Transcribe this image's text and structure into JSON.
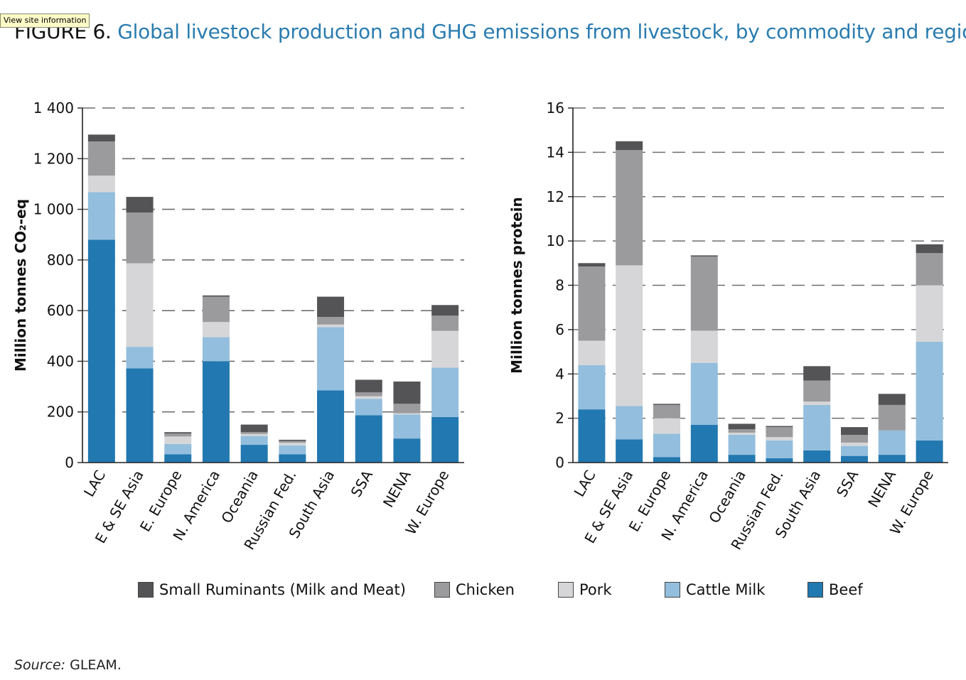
{
  "tooltip": "View site information",
  "figure": {
    "label": "FIGURE 6.",
    "title": "Global livestock production and GHG emissions from livestock, by commodity and regions"
  },
  "colors": {
    "small_ruminants": "#545457",
    "chicken": "#9b9b9d",
    "pork": "#d6d6d8",
    "cattle_milk": "#93bedd",
    "beef": "#2278b0",
    "title_blue": "#2a7cb0"
  },
  "legend": [
    {
      "label": "Small Ruminants (Milk and Meat)",
      "color": "#545457"
    },
    {
      "label": "Chicken",
      "color": "#9b9b9d"
    },
    {
      "label": "Pork",
      "color": "#d6d6d8"
    },
    {
      "label": "Cattle Milk",
      "color": "#93bedd"
    },
    {
      "label": "Beef",
      "color": "#2278b0"
    }
  ],
  "source": {
    "key": "Source:",
    "value": "GLEAM."
  },
  "chart_data": [
    {
      "type": "bar",
      "stacked": true,
      "ylabel": "Million tonnes CO₂-eq",
      "ylim": [
        0,
        1400
      ],
      "yticks": [
        0,
        200,
        400,
        600,
        800,
        1000,
        1200,
        1400
      ],
      "ytick_labels": [
        "0",
        "200",
        "400",
        "600",
        "800",
        "1 000",
        "1 200",
        "1 400"
      ],
      "grid": "dashed horizontal",
      "categories": [
        "LAC",
        "E & SE Asia",
        "E. Europe",
        "N. America",
        "Oceania",
        "Russian Fed.",
        "South Asia",
        "SSA",
        "NENA",
        "W. Europe"
      ],
      "series": [
        {
          "name": "Beef",
          "values": [
            880,
            372,
            33,
            400,
            70,
            33,
            285,
            187,
            95,
            180
          ]
        },
        {
          "name": "Cattle Milk",
          "values": [
            188,
            85,
            40,
            95,
            35,
            35,
            250,
            65,
            95,
            195
          ]
        },
        {
          "name": "Pork",
          "values": [
            65,
            330,
            30,
            60,
            8,
            10,
            10,
            10,
            5,
            145
          ]
        },
        {
          "name": "Chicken",
          "values": [
            135,
            200,
            12,
            100,
            7,
            7,
            30,
            15,
            37,
            60
          ]
        },
        {
          "name": "Small Ruminants (Milk and Meat)",
          "values": [
            27,
            62,
            5,
            5,
            30,
            5,
            80,
            50,
            88,
            42
          ]
        }
      ]
    },
    {
      "type": "bar",
      "stacked": true,
      "ylabel": "Million tonnes protein",
      "ylim": [
        0,
        16
      ],
      "yticks": [
        0,
        2,
        4,
        6,
        8,
        10,
        12,
        14,
        16
      ],
      "ytick_labels": [
        "0",
        "2",
        "4",
        "6",
        "8",
        "10",
        "12",
        "14",
        "16"
      ],
      "grid": "dashed horizontal",
      "categories": [
        "LAC",
        "E & SE Asia",
        "E. Europe",
        "N. America",
        "Oceania",
        "Russian Fed.",
        "South Asia",
        "SSA",
        "NENA",
        "W. Europe"
      ],
      "series": [
        {
          "name": "Beef",
          "values": [
            2.4,
            1.05,
            0.25,
            1.7,
            0.35,
            0.2,
            0.55,
            0.3,
            0.35,
            1.0
          ]
        },
        {
          "name": "Cattle Milk",
          "values": [
            2.0,
            1.5,
            1.05,
            2.8,
            0.9,
            0.8,
            2.05,
            0.45,
            1.1,
            4.45
          ]
        },
        {
          "name": "Pork",
          "values": [
            1.1,
            6.35,
            0.7,
            1.45,
            0.1,
            0.15,
            0.15,
            0.15,
            0.0,
            2.55
          ]
        },
        {
          "name": "Chicken",
          "values": [
            3.35,
            5.2,
            0.6,
            3.35,
            0.15,
            0.45,
            0.95,
            0.35,
            1.15,
            1.45
          ]
        },
        {
          "name": "Small Ruminants (Milk and Meat)",
          "values": [
            0.15,
            0.4,
            0.05,
            0.05,
            0.25,
            0.05,
            0.65,
            0.35,
            0.5,
            0.4
          ]
        }
      ]
    }
  ]
}
